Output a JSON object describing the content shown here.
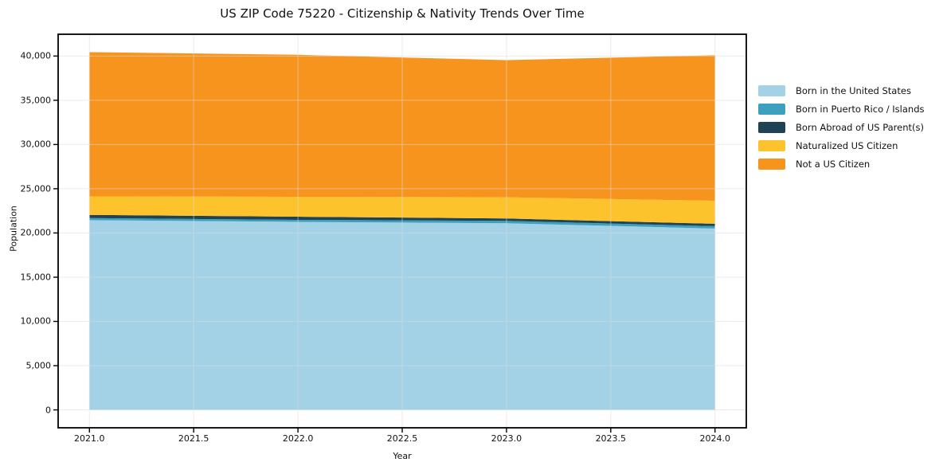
{
  "chart_data": {
    "type": "area",
    "stacked": true,
    "title": "US ZIP Code 75220 - Citizenship & Nativity Trends Over Time",
    "xlabel": "Year",
    "ylabel": "Population",
    "x": [
      2021,
      2022,
      2023,
      2024
    ],
    "series": [
      {
        "name": "Born in the United States",
        "color": "#A3D1E6",
        "values": [
          21450,
          21250,
          21100,
          20500
        ]
      },
      {
        "name": "Born in Puerto Rico / Islands",
        "color": "#3EA0BF",
        "values": [
          230,
          230,
          270,
          270
        ]
      },
      {
        "name": "Born Abroad of US Parent(s)",
        "color": "#1F4254",
        "values": [
          360,
          360,
          270,
          270
        ]
      },
      {
        "name": "Naturalized US Citizen",
        "color": "#FCC32D",
        "values": [
          2100,
          2250,
          2400,
          2600
        ]
      },
      {
        "name": "Not a US Citizen",
        "color": "#F7941E",
        "values": [
          16300,
          16050,
          15500,
          16450
        ]
      }
    ],
    "totals": [
      40440,
      40140,
      39540,
      40090
    ],
    "xlim": [
      2020.85,
      2024.15
    ],
    "ylim": [
      -2022,
      42462
    ],
    "xticks": {
      "values": [
        2021.0,
        2021.5,
        2022.0,
        2022.5,
        2023.0,
        2023.5,
        2024.0
      ],
      "labels": [
        "2021.0",
        "2021.5",
        "2022.0",
        "2022.5",
        "2023.0",
        "2023.5",
        "2024.0"
      ]
    },
    "yticks": {
      "values": [
        0,
        5000,
        10000,
        15000,
        20000,
        25000,
        30000,
        35000,
        40000
      ],
      "labels": [
        "0",
        "5,000",
        "10,000",
        "15,000",
        "20,000",
        "25,000",
        "30,000",
        "35,000",
        "40,000"
      ]
    },
    "grid": true,
    "legend_position": "right-outside"
  },
  "colors": {
    "background": "#ffffff",
    "grid": "#dcdcdc",
    "spine": "#000000",
    "tick": "#000000"
  }
}
